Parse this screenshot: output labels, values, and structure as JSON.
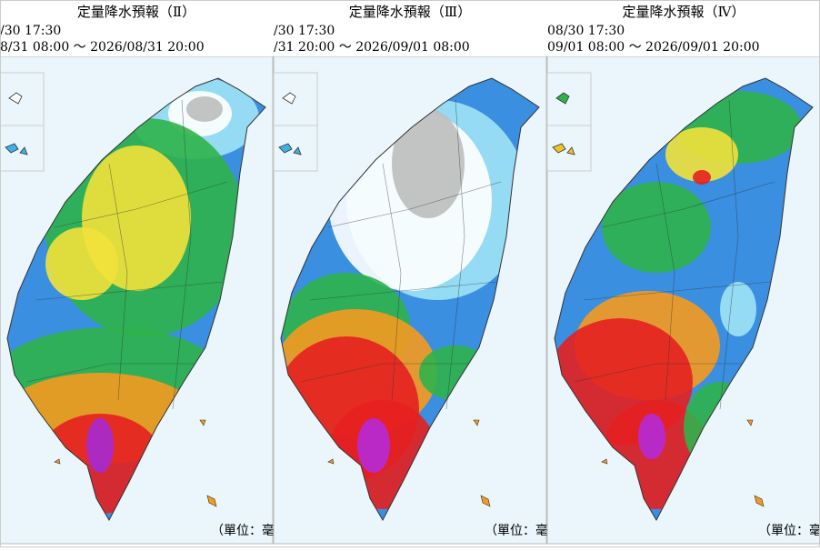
{
  "panels": [
    {
      "title": "定量降水預報（Ⅱ）",
      "issued": "/30 17:30",
      "period": "8/31 08:00 ～ 2026/08/31 20:00",
      "unit": "（單位：毫"
    },
    {
      "title": "定量降水預報（Ⅲ）",
      "issued": "/30 17:30",
      "period": "/31 20:00 ～ 2026/09/01 08:00",
      "unit": "（單位：毫"
    },
    {
      "title": "定量降水預報（Ⅳ）",
      "issued": "08/30 17:30",
      "period": "09/01 08:00 ～ 2026/09/01 20:00",
      "unit": "（單位：毫"
    }
  ]
}
